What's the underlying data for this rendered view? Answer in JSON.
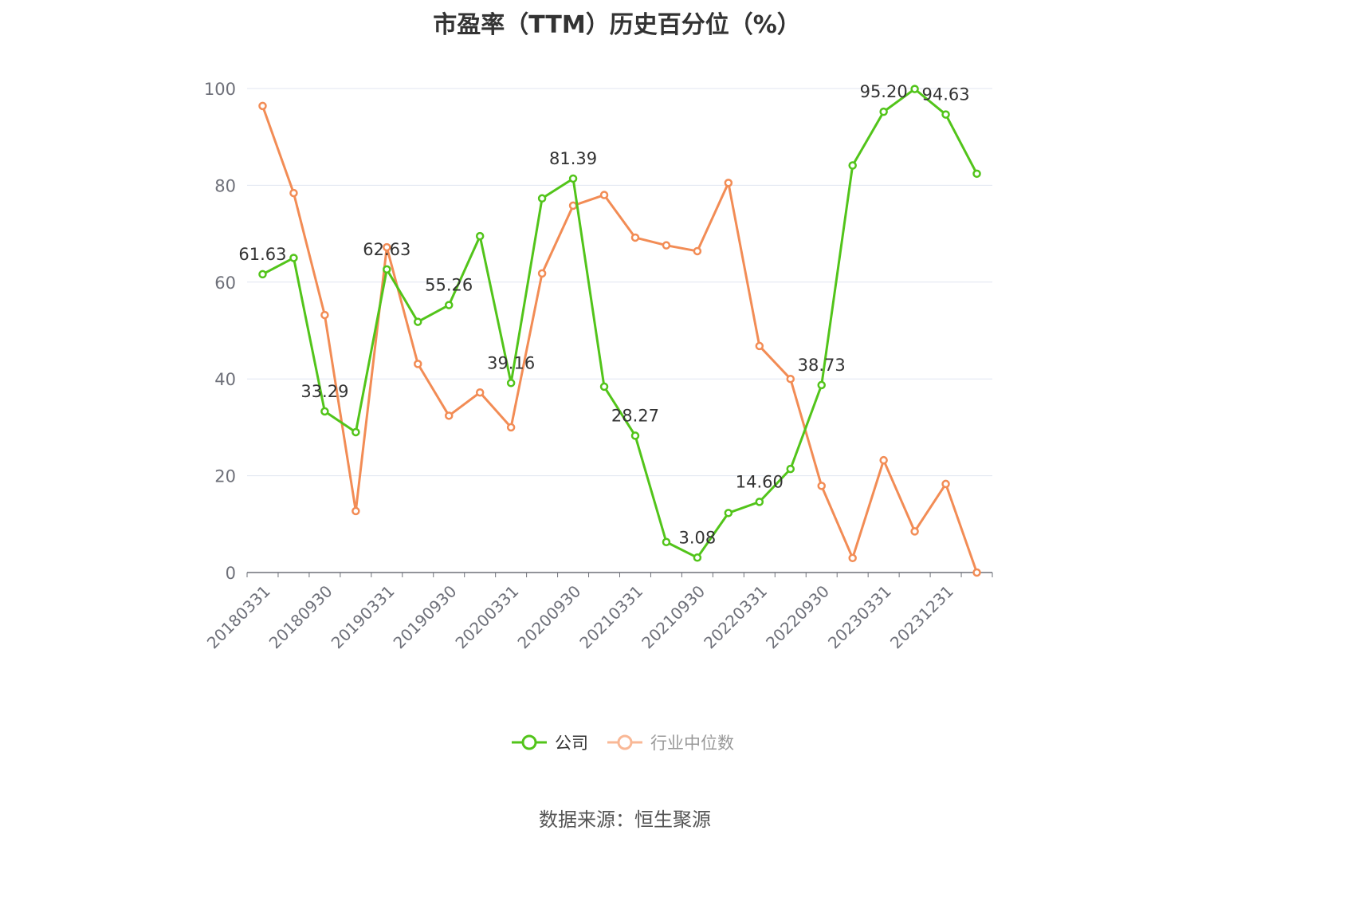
{
  "chart_data": {
    "type": "line",
    "title": "市盈率（TTM）历史百分位（%）",
    "source": "数据来源：恒生聚源",
    "ylim": [
      0,
      100
    ],
    "y_ticks": [
      "0",
      "20",
      "40",
      "60",
      "80",
      "100"
    ],
    "x": [
      "20180331",
      "20180630",
      "20180930",
      "20181231",
      "20190331",
      "20190630",
      "20190930",
      "20191231",
      "20200331",
      "20200630",
      "20200930",
      "20201231",
      "20210331",
      "20210630",
      "20210930",
      "20211231",
      "20220331",
      "20220630",
      "20220930",
      "20221231",
      "20230331",
      "20230630",
      "20231231",
      "20240331"
    ],
    "x_tick_labels": [
      "20180331",
      "20180930",
      "20190331",
      "20190930",
      "20200331",
      "20200930",
      "20210331",
      "20210930",
      "20220331",
      "20220930",
      "20230331",
      "20231231"
    ],
    "grid": true,
    "legend_position": "bottom",
    "series": [
      {
        "name": "公司",
        "color": "#52c41a",
        "values": [
          61.63,
          65.0,
          33.29,
          29.0,
          62.63,
          51.8,
          55.26,
          69.5,
          39.16,
          77.3,
          81.39,
          38.4,
          28.27,
          6.3,
          3.08,
          12.3,
          14.6,
          21.4,
          38.73,
          84.1,
          95.2,
          99.9,
          94.63,
          82.4
        ],
        "labels": [
          "61.63",
          "",
          "33.29",
          "",
          "62.63",
          "",
          "55.26",
          "",
          "39.16",
          "",
          "81.39",
          "",
          "28.27",
          "",
          "3.08",
          "",
          "14.60",
          "",
          "38.73",
          "",
          "95.20",
          "",
          "94.63",
          ""
        ]
      },
      {
        "name": "行业中位数",
        "color": "#f28c55",
        "values": [
          96.4,
          78.4,
          53.2,
          12.7,
          67.2,
          43.1,
          32.4,
          37.2,
          30.0,
          61.8,
          75.8,
          78.0,
          69.2,
          67.6,
          66.4,
          80.5,
          46.8,
          40.0,
          17.9,
          3.0,
          23.2,
          8.5,
          18.3,
          0.0
        ]
      }
    ]
  }
}
